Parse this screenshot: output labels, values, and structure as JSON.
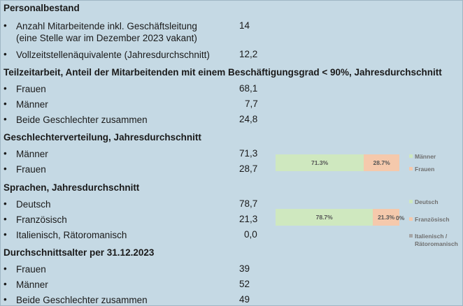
{
  "sections": {
    "personal": {
      "heading": "Personalbestand",
      "rows": [
        {
          "label_line1": "Anzahl Mitarbeitende inkl. Geschäftsleitung",
          "label_line2": "(eine Stelle war im Dezember 2023 vakant)",
          "value": "14"
        },
        {
          "label": "Vollzeitstellenäquivalente (Jahresdurchschnitt)",
          "value": "12,2"
        }
      ]
    },
    "teilzeit": {
      "heading": "Teilzeitarbeit, Anteil der Mitarbeitenden mit einem Beschäftigungsgrad < 90%, Jahresdurchschnitt",
      "rows": [
        {
          "label": "Frauen",
          "value": "68,1"
        },
        {
          "label": "Männer",
          "value": "7,7"
        },
        {
          "label": "Beide Geschlechter zusammen",
          "value": "24,8"
        }
      ]
    },
    "geschlecht": {
      "heading": "Geschlechterverteilung, Jahresdurchschnitt",
      "rows": [
        {
          "label": "Männer",
          "value": "71,3"
        },
        {
          "label": "Frauen",
          "value": "28,7"
        }
      ]
    },
    "sprachen": {
      "heading": "Sprachen, Jahresdurchschnitt",
      "rows": [
        {
          "label": "Deutsch",
          "value": "78,7"
        },
        {
          "label": "Französisch",
          "value": "21,3"
        },
        {
          "label": "Italienisch, Rätoromanisch",
          "value": "0,0"
        }
      ]
    },
    "alter": {
      "heading": "Durchschnittsalter per 31.12.2023",
      "rows": [
        {
          "label": "Frauen",
          "value": "39"
        },
        {
          "label": "Männer",
          "value": "52"
        },
        {
          "label": "Beide Geschlechter zusammen",
          "value": "49"
        }
      ]
    }
  },
  "bullet": "•",
  "chart_data": [
    {
      "type": "bar",
      "stacked": "100%",
      "orientation": "horizontal",
      "series": [
        {
          "name": "Männer",
          "values": [
            71.3
          ],
          "label": "71.3%",
          "color": "#cfe8bf"
        },
        {
          "name": "Frauen",
          "values": [
            28.7
          ],
          "label": "28.7%",
          "color": "#f5c9ac"
        }
      ],
      "legend": [
        "Männer",
        "Frauen"
      ],
      "legend_position": "right"
    },
    {
      "type": "bar",
      "stacked": "100%",
      "orientation": "horizontal",
      "series": [
        {
          "name": "Deutsch",
          "values": [
            78.7
          ],
          "label": "78.7%",
          "color": "#cfe8bf"
        },
        {
          "name": "Französisch",
          "values": [
            21.3
          ],
          "label": "21.3%",
          "color": "#f5c9ac"
        },
        {
          "name": "Italienisch / Rätoromanisch",
          "name_line1": "Italienisch /",
          "name_line2": "Rätoromanisch",
          "values": [
            0.0
          ],
          "label": "0%",
          "color": "#a6a6a6"
        }
      ],
      "legend": [
        "Deutsch",
        "Französisch",
        "Italienisch / Rätoromanisch"
      ],
      "legend_position": "right"
    }
  ]
}
